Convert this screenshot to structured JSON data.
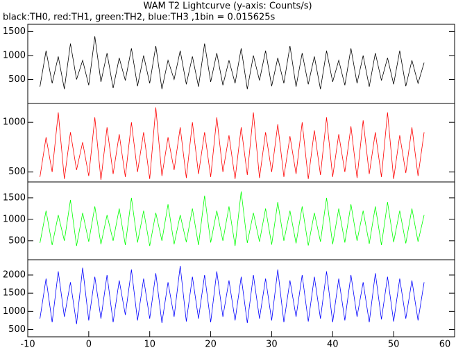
{
  "chart_data": [
    {
      "type": "line",
      "title": "WAM T2 Lightcurve (y-axis: Counts/s)",
      "subtitle": "black:TH0, red:TH1, green:TH2, blue:TH3 ,1bin = 0.015625s",
      "color": "#000000",
      "xlim": [
        -10,
        60
      ],
      "ylim": [
        0,
        1650
      ],
      "yticks": [
        500,
        1000,
        1500
      ],
      "x": [
        -8,
        -7,
        -6,
        -5,
        -4,
        -3,
        -2,
        -1,
        0,
        1,
        2,
        3,
        4,
        5,
        6,
        7,
        8,
        9,
        10,
        11,
        12,
        13,
        14,
        15,
        16,
        17,
        18,
        19,
        20,
        21,
        22,
        23,
        24,
        25,
        26,
        27,
        28,
        29,
        30,
        31,
        32,
        33,
        34,
        35,
        36,
        37,
        38,
        39,
        40,
        41,
        42,
        43,
        44,
        45,
        46,
        47,
        48,
        49,
        50,
        51,
        52,
        53,
        54,
        55
      ],
      "values": [
        350,
        1100,
        420,
        980,
        300,
        1250,
        500,
        900,
        380,
        1400,
        450,
        1050,
        320,
        950,
        480,
        1150,
        360,
        1000,
        420,
        1200,
        300,
        900,
        500,
        1100,
        400,
        980,
        350,
        1250,
        450,
        1050,
        380,
        900,
        420,
        1150,
        300,
        1000,
        480,
        1100,
        360,
        950,
        420,
        1200,
        350,
        1050,
        400,
        980,
        300,
        1100,
        450,
        900,
        380,
        1150,
        420,
        1000,
        350,
        1050,
        480,
        950,
        400,
        1100,
        360,
        900,
        420,
        850
      ]
    },
    {
      "type": "line",
      "color": "#ff0000",
      "xlim": [
        -10,
        60
      ],
      "ylim": [
        400,
        1190
      ],
      "yticks": [
        500,
        1000
      ],
      "x": [
        -8,
        -7,
        -6,
        -5,
        -4,
        -3,
        -2,
        -1,
        0,
        1,
        2,
        3,
        4,
        5,
        6,
        7,
        8,
        9,
        10,
        11,
        12,
        13,
        14,
        15,
        16,
        17,
        18,
        19,
        20,
        21,
        22,
        23,
        24,
        25,
        26,
        27,
        28,
        29,
        30,
        31,
        32,
        33,
        34,
        35,
        36,
        37,
        38,
        39,
        40,
        41,
        42,
        43,
        44,
        45,
        46,
        47,
        48,
        49,
        50,
        51,
        52,
        53,
        54,
        55
      ],
      "values": [
        450,
        850,
        500,
        1100,
        430,
        900,
        520,
        800,
        460,
        1050,
        420,
        950,
        480,
        880,
        450,
        1000,
        500,
        900,
        430,
        1150,
        460,
        850,
        520,
        950,
        440,
        1000,
        480,
        900,
        450,
        1050,
        500,
        870,
        430,
        950,
        470,
        1100,
        440,
        900,
        500,
        980,
        450,
        860,
        480,
        1000,
        430,
        920,
        470,
        1050,
        450,
        880,
        500,
        960,
        440,
        1020,
        480,
        900,
        450,
        1100,
        430,
        870,
        490,
        950,
        460,
        900
      ]
    },
    {
      "type": "line",
      "color": "#00ff00",
      "xlim": [
        -10,
        60
      ],
      "ylim": [
        60,
        1870
      ],
      "yticks": [
        500,
        1000,
        1500
      ],
      "x": [
        -8,
        -7,
        -6,
        -5,
        -4,
        -3,
        -2,
        -1,
        0,
        1,
        2,
        3,
        4,
        5,
        6,
        7,
        8,
        9,
        10,
        11,
        12,
        13,
        14,
        15,
        16,
        17,
        18,
        19,
        20,
        21,
        22,
        23,
        24,
        25,
        26,
        27,
        28,
        29,
        30,
        31,
        32,
        33,
        34,
        35,
        36,
        37,
        38,
        39,
        40,
        41,
        42,
        43,
        44,
        45,
        46,
        47,
        48,
        49,
        50,
        51,
        52,
        53,
        54,
        55
      ],
      "values": [
        450,
        1200,
        400,
        1100,
        500,
        1450,
        380,
        1150,
        480,
        1300,
        420,
        1100,
        500,
        1250,
        400,
        1500,
        460,
        1200,
        380,
        1150,
        500,
        1350,
        420,
        1100,
        470,
        1250,
        400,
        1550,
        460,
        1200,
        500,
        1300,
        380,
        1650,
        450,
        1150,
        480,
        1250,
        410,
        1400,
        500,
        1200,
        440,
        1300,
        390,
        1150,
        480,
        1500,
        420,
        1250,
        460,
        1350,
        500,
        1200,
        430,
        1300,
        400,
        1400,
        470,
        1200,
        440,
        1250,
        480,
        1100
      ]
    },
    {
      "type": "line",
      "color": "#0000ff",
      "xlim": [
        -10,
        60
      ],
      "ylim": [
        300,
        2420
      ],
      "yticks": [
        500,
        1000,
        1500,
        2000
      ],
      "xticks": [
        -10,
        0,
        10,
        20,
        30,
        40,
        50,
        60
      ],
      "x": [
        -8,
        -7,
        -6,
        -5,
        -4,
        -3,
        -2,
        -1,
        0,
        1,
        2,
        3,
        4,
        5,
        6,
        7,
        8,
        9,
        10,
        11,
        12,
        13,
        14,
        15,
        16,
        17,
        18,
        19,
        20,
        21,
        22,
        23,
        24,
        25,
        26,
        27,
        28,
        29,
        30,
        31,
        32,
        33,
        34,
        35,
        36,
        37,
        38,
        39,
        40,
        41,
        42,
        43,
        44,
        45,
        46,
        47,
        48,
        49,
        50,
        51,
        52,
        53,
        54,
        55
      ],
      "values": [
        800,
        1900,
        700,
        2100,
        850,
        1800,
        650,
        2200,
        750,
        1950,
        800,
        2000,
        700,
        1850,
        900,
        2150,
        750,
        1900,
        800,
        2050,
        680,
        1800,
        850,
        2250,
        720,
        1950,
        800,
        2000,
        700,
        2100,
        850,
        1850,
        750,
        1950,
        680,
        2000,
        800,
        1900,
        750,
        2150,
        700,
        1850,
        850,
        2000,
        720,
        1950,
        800,
        2100,
        700,
        1900,
        750,
        2000,
        850,
        1800,
        700,
        2050,
        780,
        1950,
        720,
        1900,
        800,
        1850,
        750,
        1800
      ]
    }
  ]
}
